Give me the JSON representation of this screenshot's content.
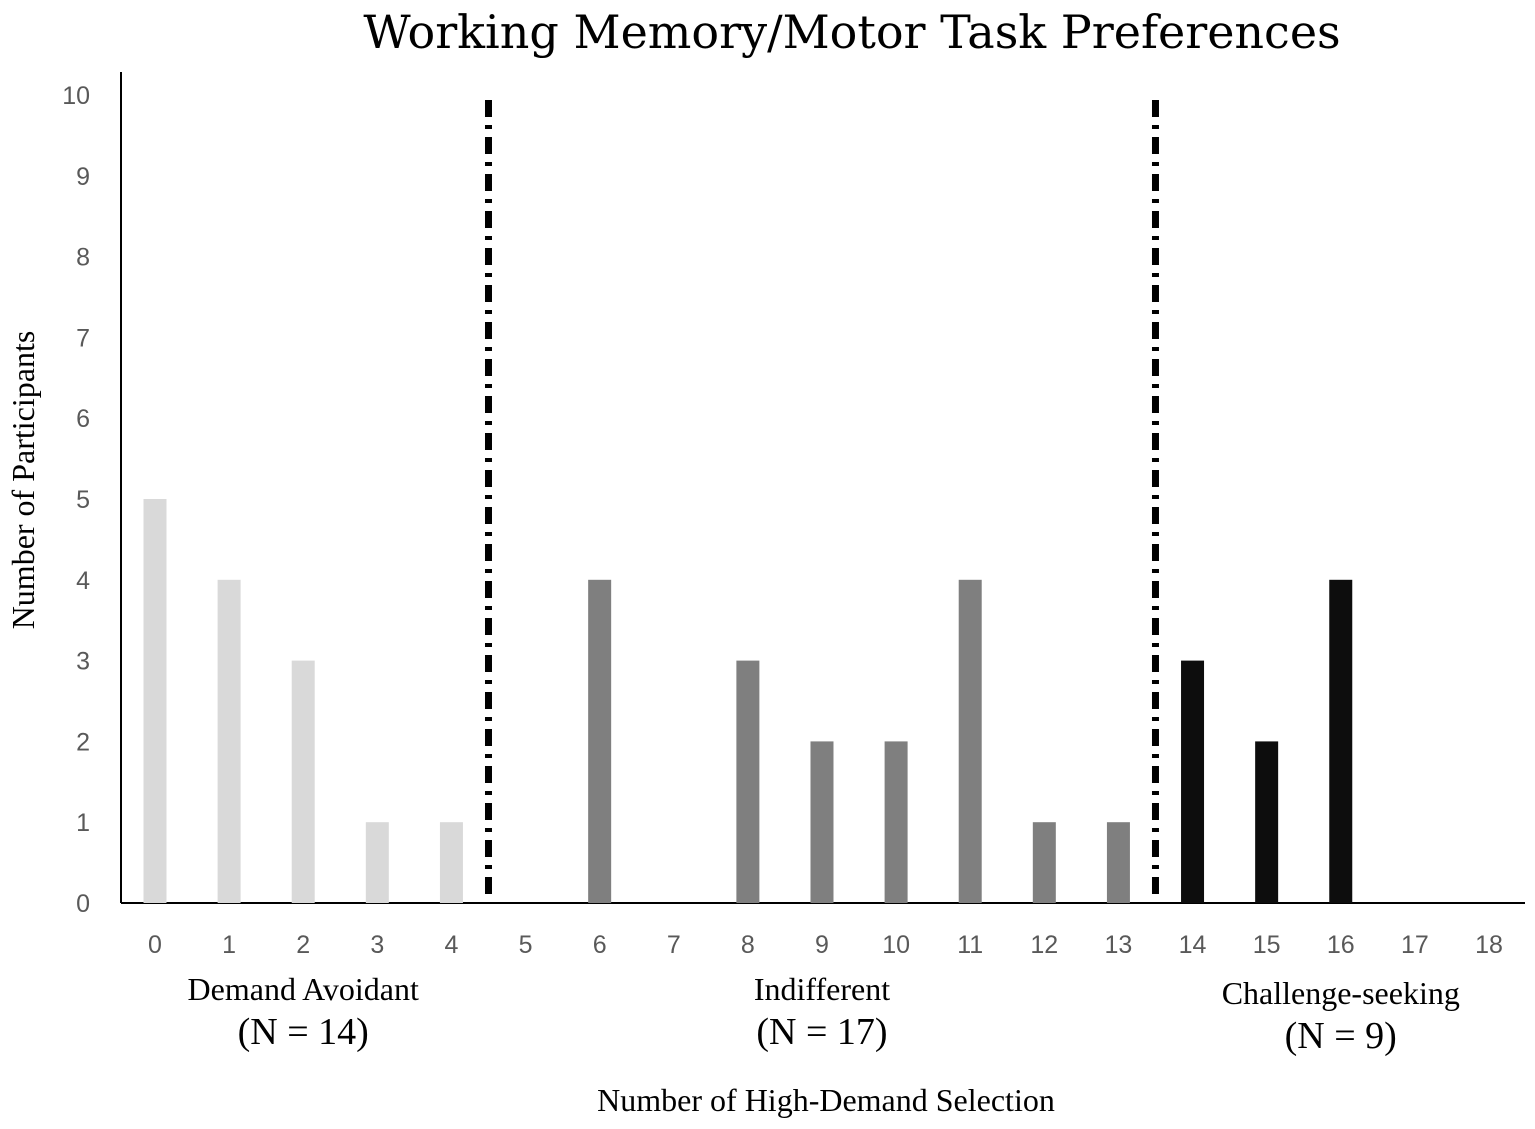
{
  "chart_data": {
    "type": "bar",
    "title": "Working Memory/Motor Task Preferences",
    "xlabel": "Number of High-Demand Selection",
    "ylabel": "Number of Participants",
    "ylim": [
      0,
      10
    ],
    "yticks": [
      "0",
      "1",
      "2",
      "3",
      "4",
      "5",
      "6",
      "7",
      "8",
      "9",
      "10"
    ],
    "categories": [
      "0",
      "1",
      "2",
      "3",
      "4",
      "5",
      "6",
      "7",
      "8",
      "9",
      "10",
      "11",
      "12",
      "13",
      "14",
      "15",
      "16",
      "17",
      "18"
    ],
    "values": [
      5,
      4,
      3,
      1,
      1,
      0,
      4,
      0,
      3,
      2,
      2,
      4,
      1,
      1,
      3,
      2,
      4,
      0,
      0
    ],
    "grid": false,
    "groups": [
      {
        "label": "Demand Avoidant",
        "n_label": "(N = 14)",
        "from": 0,
        "to": 4,
        "color": "#d9d9d9"
      },
      {
        "label": "Indifferent",
        "n_label": "(N = 17)",
        "from": 5,
        "to": 13,
        "color": "#7f7f7f"
      },
      {
        "label": "Challenge-seeking",
        "n_label": "(N = 9)",
        "from": 14,
        "to": 18,
        "color": "#0d0d0d"
      }
    ],
    "dividers_between": [
      [
        4,
        5
      ],
      [
        13,
        14
      ]
    ],
    "divider_style": "dash-dot, black"
  }
}
